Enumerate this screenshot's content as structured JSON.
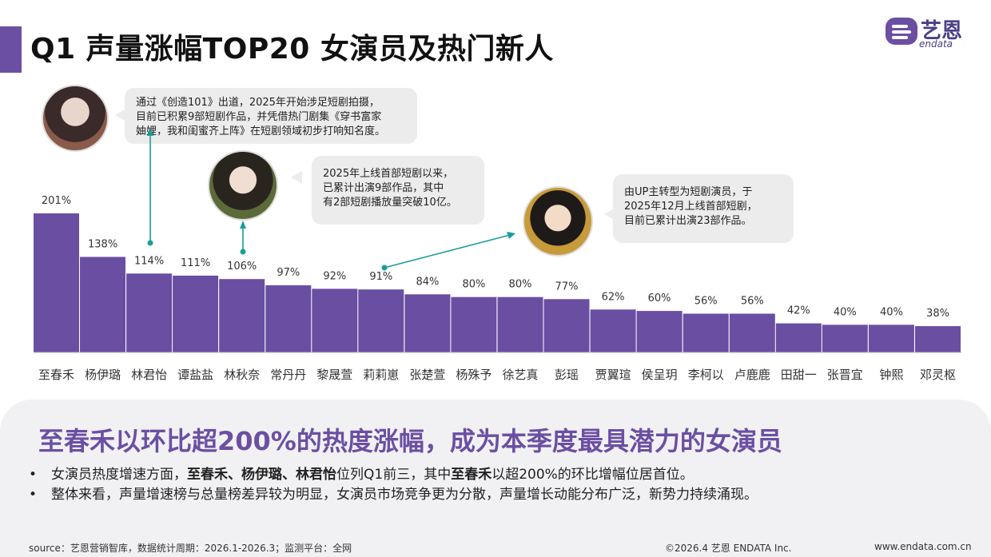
{
  "header": {
    "title": "Q1 声量涨幅TOP20 女演员及热门新人",
    "logo_text": "艺恩",
    "logo_sub": "endata",
    "accent_color": "#6b4fa3"
  },
  "chart_data": {
    "type": "bar",
    "categories": [
      "至春禾",
      "杨伊璐",
      "林君怡",
      "谭盐盐",
      "林秋奈",
      "常丹丹",
      "黎晟萱",
      "莉莉崽",
      "张楚萱",
      "杨殊予",
      "徐艺真",
      "彭瑶",
      "贾翼瑄",
      "侯呈玥",
      "李柯以",
      "卢鹿鹿",
      "田甜一",
      "张晋宜",
      "钟熙",
      "邓灵枢"
    ],
    "values": [
      201,
      138,
      114,
      111,
      106,
      97,
      92,
      91,
      84,
      80,
      80,
      77,
      62,
      60,
      56,
      56,
      42,
      40,
      40,
      38
    ],
    "value_suffix": "%",
    "bar_color": "#6a4ea2",
    "ylim": [
      0,
      210
    ]
  },
  "callouts": [
    {
      "text": [
        "通过《创造101》出道，2025年开始涉足短剧拍摄，",
        "目前已积累9部短剧作品，并凭借热门剧集《穿书富家",
        "妯娌，我和闺蜜齐上阵》在短剧领域初步打响知名度。"
      ]
    },
    {
      "text": [
        "2025年上线首部短剧以来，",
        "已累计出演9部作品，其中",
        "有2部短剧播放量突破10亿。"
      ]
    },
    {
      "text": [
        "由UP主转型为短剧演员，于",
        "2025年12月上线首部短剧，",
        "目前已累计出演23部作品。"
      ]
    }
  ],
  "annotation_color": "#1a9e97",
  "summary": {
    "headline": "至春禾以环比超200%的热度涨幅，成为本季度最具潜力的女演员",
    "bullet1": {
      "pre": "女演员热度增速方面，",
      "bold": "至春禾、杨伊璐、林君怡",
      "mid": "位列Q1前三，其中",
      "bold2": "至春禾",
      "post": "以超200%的环比增幅位居首位。"
    },
    "bullet2": "整体来看，声量增速榜与总量榜差异较为明显，女演员市场竞争更为分散，声量增长动能分布广泛，新势力持续涌现。"
  },
  "footer": {
    "source": "source：艺恩营销智库，数据统计周期：2026.1-2026.3；监测平台：全网",
    "copyright": "©2026.4 艺恩 ENDATA Inc.",
    "website": "www.endata.com.cn"
  }
}
